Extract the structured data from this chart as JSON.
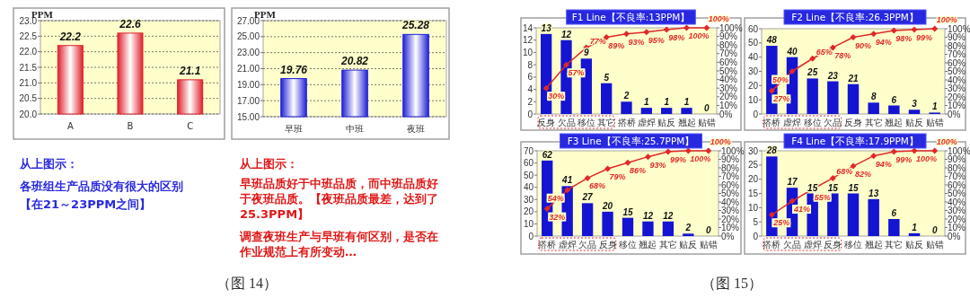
{
  "chart_data": [
    {
      "type": "bar",
      "ylabel": "PPM",
      "categories": [
        "A",
        "B",
        "C"
      ],
      "values": [
        22.2,
        22.6,
        21.1
      ],
      "color": "#e0202c",
      "data_labels": true,
      "grid": "y",
      "ylim": [
        20,
        23
      ],
      "yticks": [
        {
          "value": 20,
          "label": "20.0"
        },
        {
          "value": 20.5,
          "label": "20.5"
        },
        {
          "value": 21,
          "label": "21.0"
        },
        {
          "value": 21.5,
          "label": "21.5"
        },
        {
          "value": 22,
          "label": "22.0"
        },
        {
          "value": 22.5,
          "label": "22.5"
        },
        {
          "value": 23,
          "label": "23.0"
        }
      ],
      "annotations": [
        "从上图示：",
        "各班组生产品质没有很大的区别",
        "【在21～23PPM之间】"
      ]
    },
    {
      "type": "bar",
      "ylabel": "PPM",
      "categories": [
        "早班",
        "中班",
        "夜班"
      ],
      "values": [
        19.76,
        20.82,
        25.28
      ],
      "color": "#2020d8",
      "data_labels": true,
      "grid": "y",
      "ylim": [
        15,
        27
      ],
      "yticks": [
        {
          "value": 15,
          "label": "15.00"
        },
        {
          "value": 17,
          "label": "17.00"
        },
        {
          "value": 19,
          "label": "19.00"
        },
        {
          "value": 21,
          "label": "21.00"
        },
        {
          "value": 23,
          "label": "23.00"
        },
        {
          "value": 25,
          "label": "25.00"
        },
        {
          "value": 27,
          "label": "27.00"
        }
      ],
      "annotations": [
        "从上图示：",
        "早班品质好于中班品质，而中班品质好于夜班品质。【夜班品质最差，达到了25.3PPM】",
        "调查夜班生产与早班有何区别，是否在作业规范上有所变动…",
        "（图 14）"
      ]
    },
    {
      "type": "bar",
      "title": "F1 Line【不良率:13PPM】",
      "categories": [
        "反身",
        "欠品",
        "移位",
        "其它",
        "搭桥",
        "虚焊",
        "贴反",
        "翘起",
        "贴错"
      ],
      "data_labels": true,
      "marker": "diamond",
      "series": [
        {
          "type": "bar",
          "color": "#1414d2",
          "values": [
            13,
            12,
            9,
            5,
            2,
            1,
            1,
            1,
            0
          ]
        },
        {
          "type": "line",
          "axis": "y2",
          "color": "#e02828",
          "values": [
            30,
            57,
            77,
            89,
            93,
            95,
            98,
            100,
            100
          ],
          "value_labels": [
            "30%",
            "57%",
            "77%",
            "89%",
            "93%",
            "95%",
            "98%",
            "100%",
            "100%"
          ]
        }
      ],
      "ylim": [
        0,
        14
      ],
      "yticks": [
        0,
        2,
        4,
        6,
        8,
        10,
        12,
        14
      ],
      "y2lim": [
        0,
        100
      ],
      "y2ticks": [
        {
          "value": 0,
          "label": "0%"
        },
        {
          "value": 10,
          "label": "10%"
        },
        {
          "value": 20,
          "label": "20%"
        },
        {
          "value": 30,
          "label": "30%"
        },
        {
          "value": 40,
          "label": "40%"
        },
        {
          "value": 50,
          "label": "50%"
        },
        {
          "value": 60,
          "label": "60%"
        },
        {
          "value": 70,
          "label": "70%"
        },
        {
          "value": 80,
          "label": "80%"
        },
        {
          "value": 90,
          "label": "90%"
        },
        {
          "value": 100,
          "label": "100%"
        }
      ]
    },
    {
      "type": "bar",
      "title": "F2 Line【不良率:26.3PPM】",
      "categories": [
        "搭桥",
        "虚焊",
        "移位",
        "欠品",
        "反身",
        "其它",
        "翘起",
        "贴反",
        "贴错"
      ],
      "data_labels": true,
      "marker": "diamond",
      "series": [
        {
          "type": "bar",
          "color": "#1414d2",
          "values": [
            48,
            40,
            25,
            23,
            21,
            8,
            6,
            3,
            1
          ]
        },
        {
          "type": "line",
          "axis": "y2",
          "color": "#e02828",
          "values": [
            27,
            50,
            65,
            78,
            90,
            94,
            98,
            99,
            100
          ],
          "value_labels": [
            "27%",
            "50%",
            "65%",
            "78%",
            "90%",
            "94%",
            "98%",
            "99%",
            "100%"
          ]
        }
      ],
      "ylim": [
        0,
        60
      ],
      "yticks": [
        0,
        10,
        20,
        30,
        40,
        50,
        60
      ],
      "y2lim": [
        0,
        100
      ],
      "y2ticks": [
        {
          "value": 0,
          "label": "0%"
        },
        {
          "value": 10,
          "label": "10%"
        },
        {
          "value": 20,
          "label": "20%"
        },
        {
          "value": 30,
          "label": "30%"
        },
        {
          "value": 40,
          "label": "40%"
        },
        {
          "value": 50,
          "label": "50%"
        },
        {
          "value": 60,
          "label": "60%"
        },
        {
          "value": 70,
          "label": "70%"
        },
        {
          "value": 80,
          "label": "80%"
        },
        {
          "value": 90,
          "label": "90%"
        },
        {
          "value": 100,
          "label": "100%"
        }
      ]
    },
    {
      "type": "bar",
      "title": "F3 Line【不良率:25.7PPM】",
      "categories": [
        "搭桥",
        "虚焊",
        "欠品",
        "反身",
        "移位",
        "翘起",
        "其它",
        "贴反",
        "贴错"
      ],
      "data_labels": true,
      "marker": "diamond",
      "series": [
        {
          "type": "bar",
          "color": "#1414d2",
          "values": [
            62,
            41,
            27,
            20,
            15,
            12,
            12,
            2,
            0
          ]
        },
        {
          "type": "line",
          "axis": "y2",
          "color": "#e02828",
          "values": [
            32,
            54,
            68,
            79,
            86,
            93,
            99,
            100,
            100
          ],
          "value_labels": [
            "32%",
            "54%",
            "68%",
            "79%",
            "86%",
            "93%",
            "99%",
            "100%",
            "100%"
          ]
        }
      ],
      "ylim": [
        0,
        70
      ],
      "yticks": [
        0,
        10,
        20,
        30,
        40,
        50,
        60,
        70
      ],
      "y2lim": [
        0,
        100
      ],
      "y2ticks": [
        {
          "value": 0,
          "label": "0%"
        },
        {
          "value": 10,
          "label": "10%"
        },
        {
          "value": 20,
          "label": "20%"
        },
        {
          "value": 30,
          "label": "30%"
        },
        {
          "value": 40,
          "label": "40%"
        },
        {
          "value": 50,
          "label": "50%"
        },
        {
          "value": 60,
          "label": "60%"
        },
        {
          "value": 70,
          "label": "70%"
        },
        {
          "value": 80,
          "label": "80%"
        },
        {
          "value": 90,
          "label": "90%"
        },
        {
          "value": 100,
          "label": "100%"
        }
      ],
      "annotations": [
        "（图 15）"
      ]
    },
    {
      "type": "bar",
      "title": "F4 Line【不良率:17.9PPM】",
      "categories": [
        "搭桥",
        "欠品",
        "虚焊",
        "反身",
        "移位",
        "翘起",
        "其它",
        "贴反",
        "贴错"
      ],
      "data_labels": true,
      "marker": "diamond",
      "series": [
        {
          "type": "bar",
          "color": "#1414d2",
          "values": [
            28,
            17,
            15,
            15,
            15,
            13,
            6,
            1,
            0
          ]
        },
        {
          "type": "line",
          "axis": "y2",
          "color": "#e02828",
          "values": [
            25,
            41,
            55,
            68,
            82,
            94,
            99,
            100,
            100
          ],
          "value_labels": [
            "25%",
            "41%",
            "55%",
            "68%",
            "82%",
            "94%",
            "99%",
            "100%",
            "100%"
          ]
        }
      ],
      "ylim": [
        0,
        30
      ],
      "yticks": [
        0,
        5,
        10,
        15,
        20,
        25,
        30
      ],
      "y2lim": [
        0,
        100
      ],
      "y2ticks": [
        {
          "value": 0,
          "label": "0%"
        },
        {
          "value": 10,
          "label": "10%"
        },
        {
          "value": 20,
          "label": "20%"
        },
        {
          "value": 30,
          "label": "30%"
        },
        {
          "value": 40,
          "label": "40%"
        },
        {
          "value": 50,
          "label": "50%"
        },
        {
          "value": 60,
          "label": "60%"
        },
        {
          "value": 70,
          "label": "70%"
        },
        {
          "value": 80,
          "label": "80%"
        },
        {
          "value": 90,
          "label": "90%"
        },
        {
          "value": 100,
          "label": "100%"
        }
      ]
    }
  ]
}
